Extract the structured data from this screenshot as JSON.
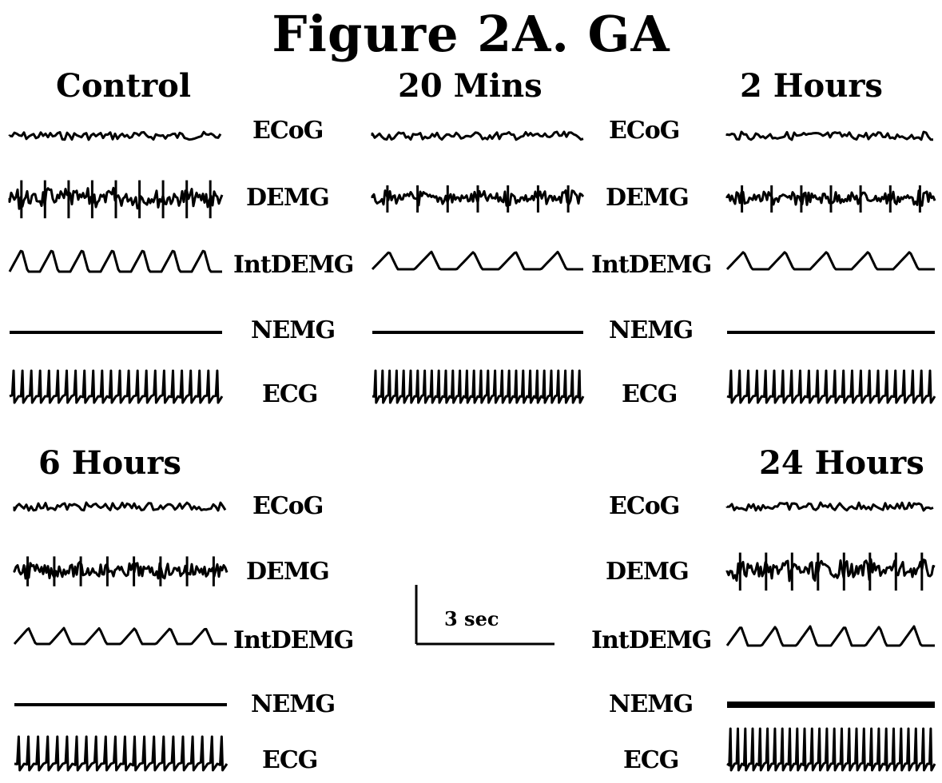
{
  "figure_title": "Figure 2A.  GA",
  "panels": [
    {
      "id": "control",
      "title": "Control"
    },
    {
      "id": "20min",
      "title": "20 Mins"
    },
    {
      "id": "2h",
      "title": "2 Hours"
    },
    {
      "id": "6h",
      "title": "6 Hours"
    },
    {
      "id": "24h",
      "title": "24 Hours"
    }
  ],
  "channel_labels": {
    "ecog": "ECoG",
    "demg": "DEMG",
    "intdemg": "IntDEMG",
    "nemg": "NEMG",
    "ecg": "ECG"
  },
  "scale_bar": {
    "label": "3 sec"
  }
}
